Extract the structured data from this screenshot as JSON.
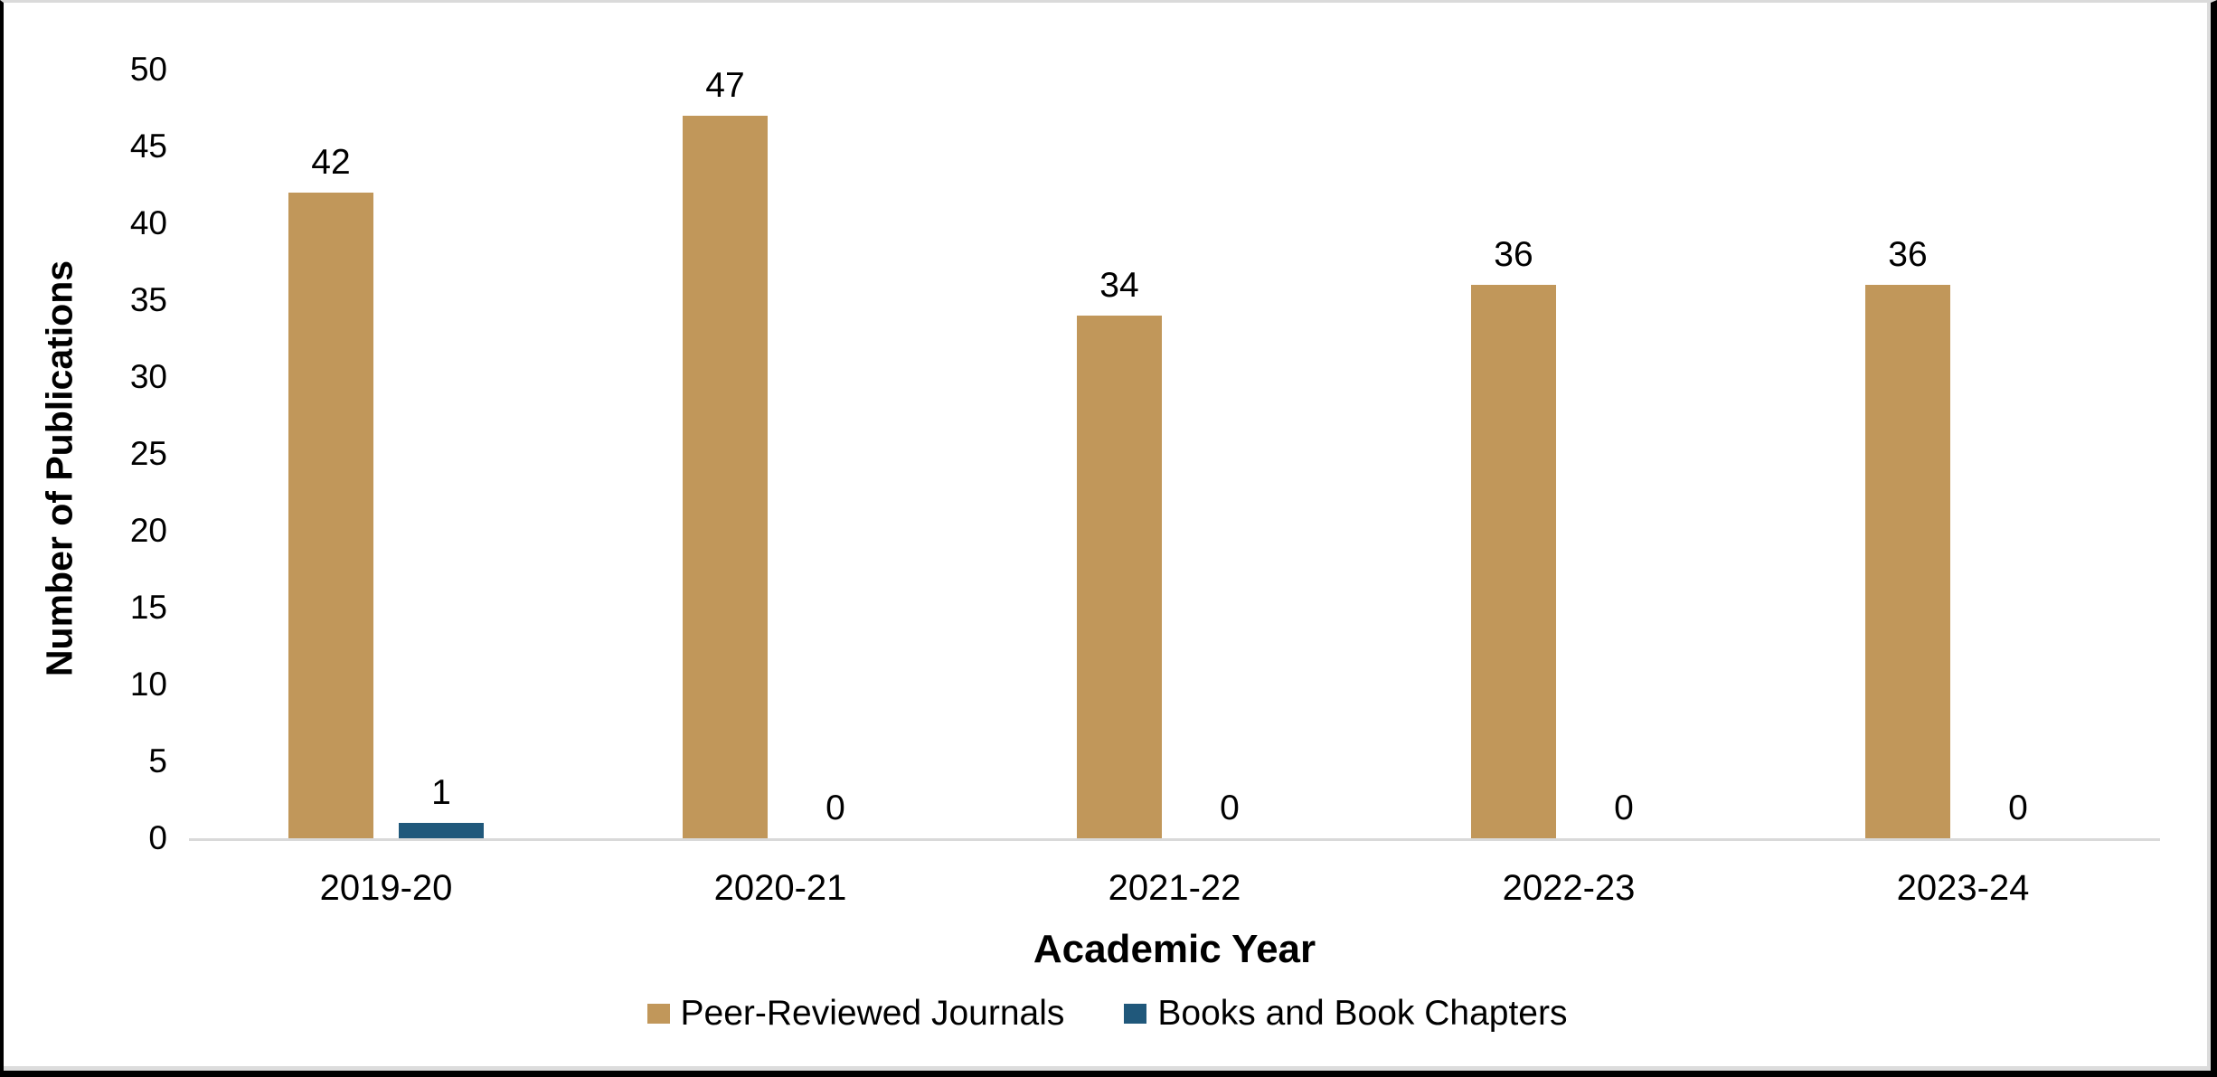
{
  "chart_data": {
    "type": "bar",
    "title": "",
    "categories": [
      "2019-20",
      "2020-21",
      "2021-22",
      "2022-23",
      "2023-24"
    ],
    "series": [
      {
        "name": "Peer-Reviewed Journals",
        "color": "#C1975A",
        "values": [
          42,
          47,
          34,
          36,
          36
        ]
      },
      {
        "name": "Books and Book Chapters",
        "color": "#20587B",
        "values": [
          1,
          0,
          0,
          0,
          0
        ]
      }
    ],
    "xlabel": "Academic Year",
    "ylabel": "Number of Publications",
    "ylim": [
      0,
      50
    ],
    "ytick_step": 5,
    "grid": false,
    "legend_position": "bottom",
    "data_labels": true
  },
  "colors": {
    "axis_line": "#d9d9d9",
    "text": "#000000",
    "frame": "#000000",
    "background": "#ffffff"
  }
}
